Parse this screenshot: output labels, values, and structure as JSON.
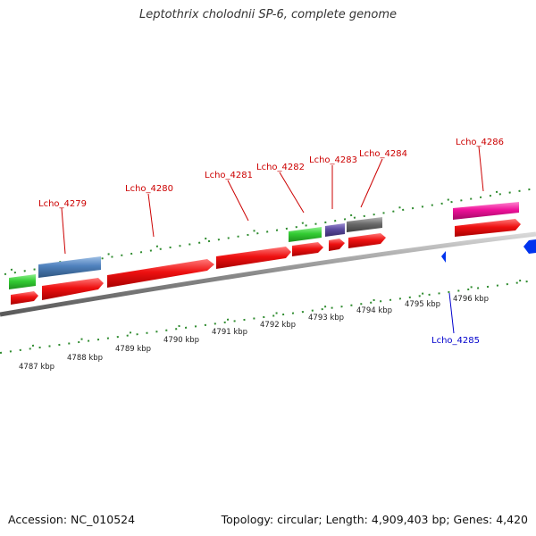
{
  "title": "Leptothrix cholodnii SP-6, complete genome",
  "footer": {
    "accession": "Accession: NC_010524",
    "stats": "Topology: circular; Length: 4,909,403 bp; Genes: 4,420"
  },
  "colors": {
    "cds": "#ee1111",
    "cog_green": "#33cc33",
    "cog_blue": "#4f81bd",
    "cog_purple": "#5c4a9e",
    "cog_gray": "#666666",
    "cog_magenta": "#ee1199",
    "reverse_strand": "#0033ee",
    "ticks": "#2e8b2e",
    "backbone": "#8a8a8a"
  },
  "scale_labels": [
    "4787 kbp",
    "4788 kbp",
    "4789 kbp",
    "4790 kbp",
    "4791 kbp",
    "4792 kbp",
    "4793 kbp",
    "4794 kbp",
    "4795 kbp",
    "4796 kbp"
  ],
  "gene_labels": [
    {
      "text": "Lcho_4279",
      "strand": "forward"
    },
    {
      "text": "Lcho_4280",
      "strand": "forward"
    },
    {
      "text": "Lcho_4281",
      "strand": "forward"
    },
    {
      "text": "Lcho_4282",
      "strand": "forward"
    },
    {
      "text": "Lcho_4283",
      "strand": "forward"
    },
    {
      "text": "Lcho_4284",
      "strand": "forward"
    },
    {
      "text": "Lcho_4286",
      "strand": "forward"
    },
    {
      "text": "Lcho_4285",
      "strand": "reverse"
    }
  ]
}
